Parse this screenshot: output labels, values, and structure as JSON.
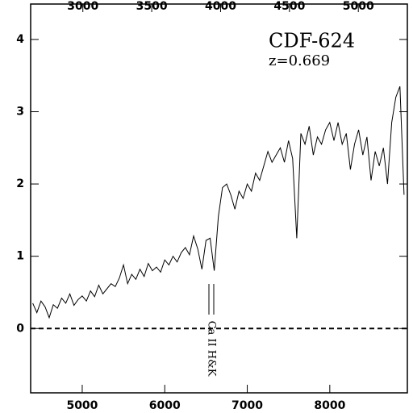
{
  "chart_data": {
    "type": "line",
    "annotations": {
      "object": "CDF-624",
      "redshift": "z=0.669",
      "feature": "Ca II H&K"
    },
    "x": [
      4400,
      4450,
      4500,
      4550,
      4600,
      4650,
      4700,
      4750,
      4800,
      4850,
      4900,
      4950,
      5000,
      5050,
      5100,
      5150,
      5200,
      5250,
      5300,
      5350,
      5400,
      5450,
      5500,
      5550,
      5600,
      5650,
      5700,
      5750,
      5800,
      5850,
      5900,
      5950,
      6000,
      6050,
      6100,
      6150,
      6200,
      6250,
      6300,
      6350,
      6400,
      6450,
      6500,
      6550,
      6600,
      6650,
      6700,
      6750,
      6800,
      6850,
      6900,
      6950,
      7000,
      7050,
      7100,
      7150,
      7200,
      7250,
      7300,
      7350,
      7400,
      7450,
      7500,
      7550,
      7600,
      7650,
      7700,
      7750,
      7800,
      7850,
      7900,
      7950,
      8000,
      8050,
      8100,
      8150,
      8200,
      8250,
      8300,
      8350,
      8400,
      8450,
      8500,
      8550,
      8600,
      8650,
      8700,
      8750,
      8800,
      8850,
      8900
    ],
    "values": [
      0.35,
      0.22,
      0.38,
      0.3,
      0.15,
      0.33,
      0.28,
      0.42,
      0.35,
      0.48,
      0.32,
      0.4,
      0.45,
      0.38,
      0.52,
      0.44,
      0.6,
      0.48,
      0.55,
      0.62,
      0.58,
      0.7,
      0.88,
      0.62,
      0.75,
      0.68,
      0.82,
      0.72,
      0.9,
      0.8,
      0.85,
      0.78,
      0.95,
      0.88,
      1.0,
      0.92,
      1.05,
      1.12,
      1.02,
      1.28,
      1.1,
      0.82,
      1.22,
      1.25,
      0.8,
      1.55,
      1.95,
      2.0,
      1.85,
      1.65,
      1.9,
      1.8,
      2.0,
      1.9,
      2.15,
      2.05,
      2.25,
      2.45,
      2.3,
      2.4,
      2.5,
      2.3,
      2.6,
      2.35,
      1.25,
      2.7,
      2.55,
      2.8,
      2.4,
      2.65,
      2.55,
      2.75,
      2.85,
      2.6,
      2.85,
      2.55,
      2.7,
      2.2,
      2.55,
      2.75,
      2.4,
      2.65,
      2.05,
      2.45,
      2.25,
      2.5,
      2.0,
      2.85,
      3.2,
      3.35,
      1.85
    ],
    "color": "#000000",
    "xlim": [
      4375,
      8940
    ],
    "xticks": [
      5000,
      6000,
      7000,
      8000
    ],
    "x2lim": [
      2621,
      5356
    ],
    "x2ticks": [
      3000,
      3500,
      4000,
      4500,
      5000
    ],
    "ylim": [
      -0.89,
      4.49
    ],
    "yticks": [
      0,
      1,
      2,
      3,
      4
    ],
    "reference_line": 0
  }
}
